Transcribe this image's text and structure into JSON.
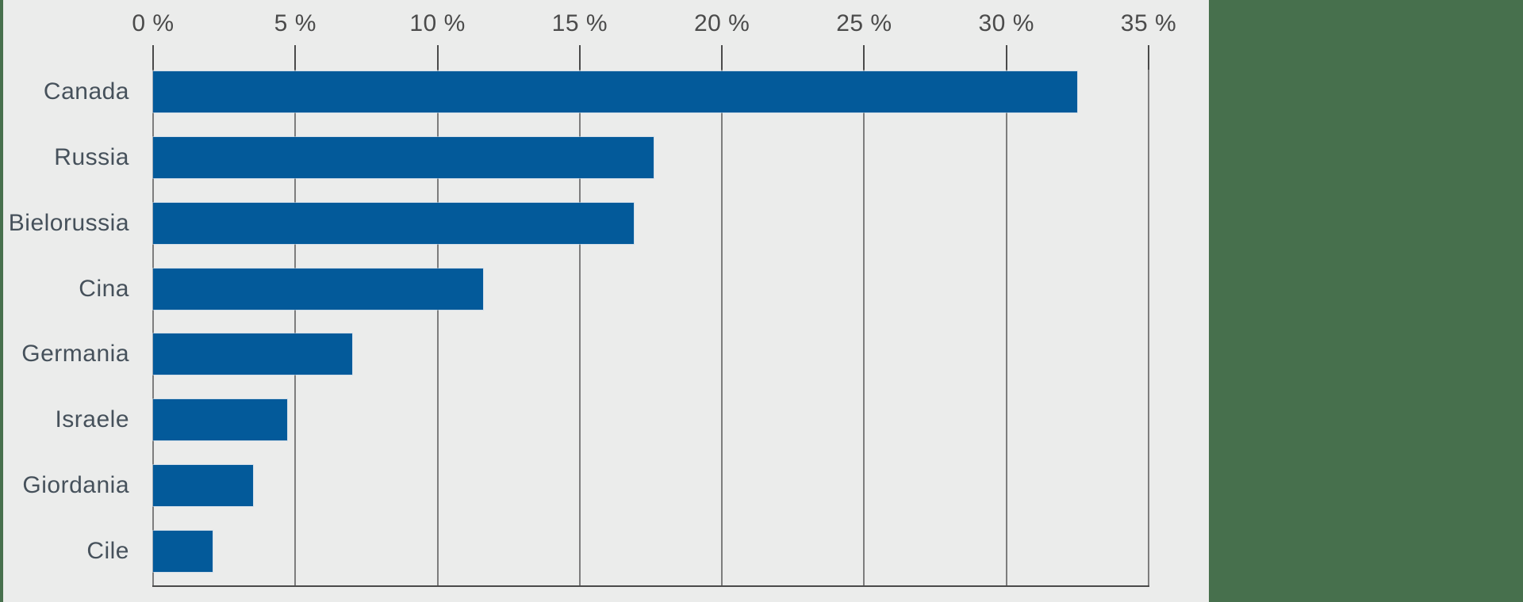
{
  "chart_data": {
    "type": "bar",
    "orientation": "horizontal",
    "title": "",
    "xlabel": "",
    "ylabel": "",
    "categories": [
      "Canada",
      "Russia",
      "Bielorussia",
      "Cina",
      "Germania",
      "Israele",
      "Giordania",
      "Cile"
    ],
    "values": [
      32.5,
      17.6,
      16.9,
      11.6,
      7.0,
      4.7,
      3.5,
      2.1
    ],
    "xlim": [
      0,
      35
    ],
    "x_ticks": [
      0,
      5,
      10,
      15,
      20,
      25,
      30,
      35
    ],
    "x_tick_labels": [
      "0 %",
      "5 %",
      "10 %",
      "15 %",
      "20 %",
      "25 %",
      "30 %",
      "35 %"
    ],
    "axis_position": "top",
    "grid": true,
    "legend": false,
    "colors": {
      "bar": "#035A9A",
      "category_label": "#46515B",
      "tick_label": "#4B4B4B",
      "grid_line": "#7D7D7D",
      "tick_mark": "#4A4A4A",
      "axis_line": "#4A4A4A",
      "background": "#EBECEB",
      "side_panel": "#47704D"
    }
  }
}
